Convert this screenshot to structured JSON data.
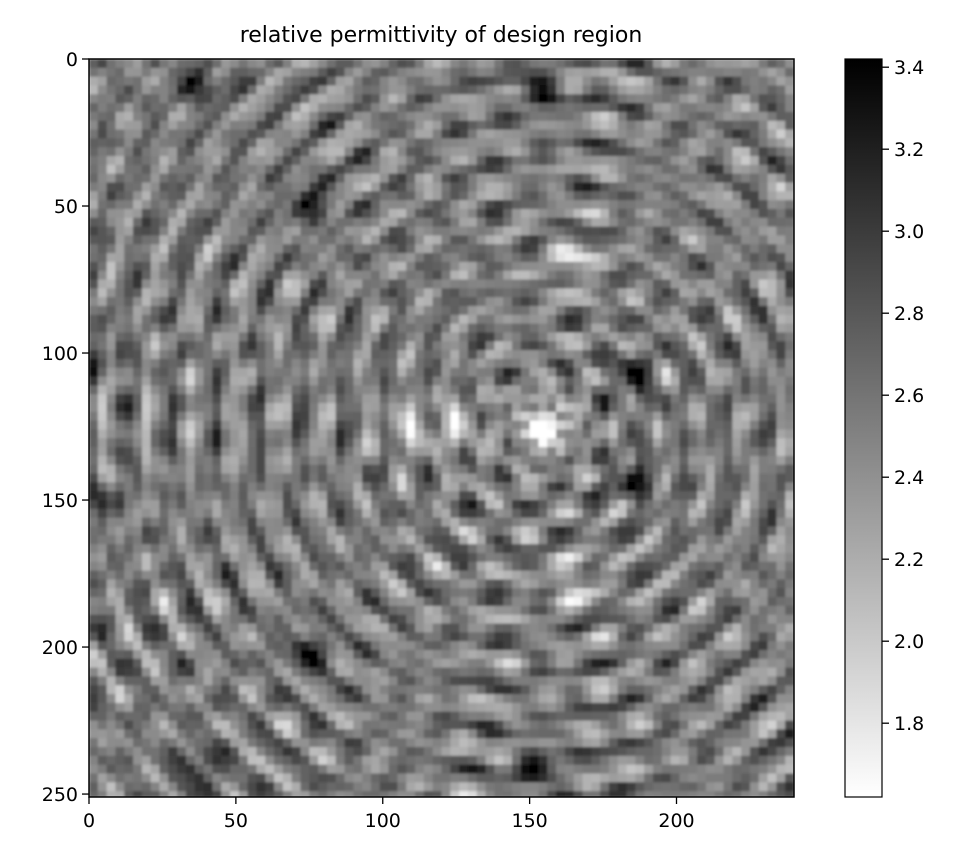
{
  "chart_data": {
    "type": "heatmap",
    "title": "relative permittivity of design region",
    "xlabel": "",
    "ylabel": "",
    "colormap": "gray_r",
    "x_extent": [
      0,
      240
    ],
    "y_extent": [
      0,
      251
    ],
    "y_inverted": true,
    "x_ticks": [
      0,
      50,
      100,
      150,
      200
    ],
    "x_tick_labels": [
      "0",
      "50",
      "100",
      "150",
      "200"
    ],
    "y_ticks": [
      0,
      50,
      100,
      150,
      200,
      250
    ],
    "y_tick_labels": [
      "0",
      "50",
      "100",
      "150",
      "200",
      "250"
    ],
    "colorbar": {
      "range": [
        1.62,
        3.42
      ],
      "ticks": [
        1.8,
        2.0,
        2.2,
        2.4,
        2.6,
        2.8,
        3.0,
        3.2,
        3.4
      ],
      "tick_labels": [
        "1.8",
        "2.0",
        "2.2",
        "2.4",
        "2.6",
        "2.8",
        "3.0",
        "3.2",
        "3.4"
      ],
      "colors": {
        "low": "#ffffff",
        "high": "#000000"
      }
    },
    "pattern": {
      "description_center_bright": [
        155,
        125
      ],
      "secondary_bright_spots": [
        [
          125,
          125
        ],
        [
          108,
          125
        ],
        [
          165,
          70
        ],
        [
          165,
          178
        ]
      ],
      "dark_spots": [
        [
          153,
          10
        ],
        [
          153,
          242
        ],
        [
          75,
          48
        ],
        [
          75,
          202
        ],
        [
          38,
          8
        ],
        [
          38,
          242
        ],
        [
          0,
          100
        ],
        [
          0,
          150
        ],
        [
          185,
          108
        ],
        [
          185,
          143
        ]
      ]
    }
  }
}
